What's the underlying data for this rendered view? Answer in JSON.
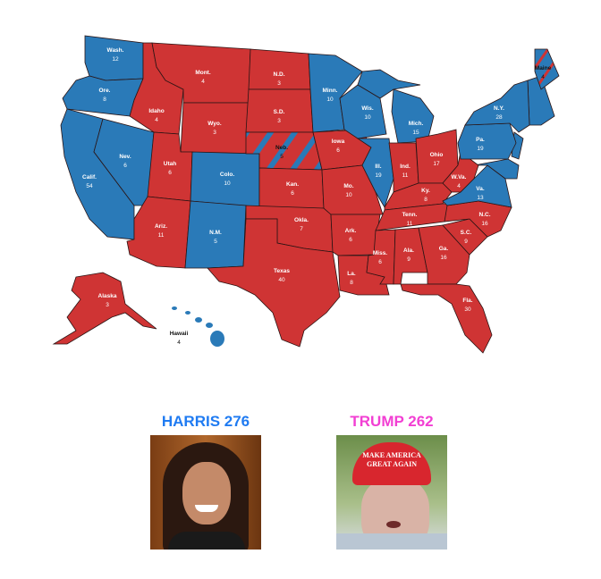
{
  "colors": {
    "harris": "#2a7ab8",
    "trump": "#cf3434",
    "harris_heading": "#1f7bf2",
    "trump_heading": "#f23fd3",
    "border": "#2a1414"
  },
  "map": {
    "states": [
      {
        "name": "Wash.",
        "votes": "12",
        "winner": "harris"
      },
      {
        "name": "Ore.",
        "votes": "8",
        "winner": "harris"
      },
      {
        "name": "Calif.",
        "votes": "54",
        "winner": "harris"
      },
      {
        "name": "Nev.",
        "votes": "6",
        "winner": "harris"
      },
      {
        "name": "Idaho",
        "votes": "4",
        "winner": "trump"
      },
      {
        "name": "Mont.",
        "votes": "4",
        "winner": "trump"
      },
      {
        "name": "Wyo.",
        "votes": "3",
        "winner": "trump"
      },
      {
        "name": "Utah",
        "votes": "6",
        "winner": "trump"
      },
      {
        "name": "Colo.",
        "votes": "10",
        "winner": "harris"
      },
      {
        "name": "Ariz.",
        "votes": "11",
        "winner": "trump"
      },
      {
        "name": "N.M.",
        "votes": "5",
        "winner": "harris"
      },
      {
        "name": "N.D.",
        "votes": "3",
        "winner": "trump"
      },
      {
        "name": "S.D.",
        "votes": "3",
        "winner": "trump"
      },
      {
        "name": "Neb.",
        "votes": "5",
        "winner": "split-trump"
      },
      {
        "name": "Kan.",
        "votes": "6",
        "winner": "trump"
      },
      {
        "name": "Okla.",
        "votes": "7",
        "winner": "trump"
      },
      {
        "name": "Texas",
        "votes": "40",
        "winner": "trump"
      },
      {
        "name": "Minn.",
        "votes": "10",
        "winner": "harris"
      },
      {
        "name": "Iowa",
        "votes": "6",
        "winner": "trump"
      },
      {
        "name": "Mo.",
        "votes": "10",
        "winner": "trump"
      },
      {
        "name": "Ark.",
        "votes": "6",
        "winner": "trump"
      },
      {
        "name": "La.",
        "votes": "8",
        "winner": "trump"
      },
      {
        "name": "Wis.",
        "votes": "10",
        "winner": "harris"
      },
      {
        "name": "Ill.",
        "votes": "19",
        "winner": "harris"
      },
      {
        "name": "Mich.",
        "votes": "15",
        "winner": "harris"
      },
      {
        "name": "Ind.",
        "votes": "11",
        "winner": "trump"
      },
      {
        "name": "Ohio",
        "votes": "17",
        "winner": "trump"
      },
      {
        "name": "Ky.",
        "votes": "8",
        "winner": "trump"
      },
      {
        "name": "Tenn.",
        "votes": "11",
        "winner": "trump"
      },
      {
        "name": "Miss.",
        "votes": "6",
        "winner": "trump"
      },
      {
        "name": "Ala.",
        "votes": "9",
        "winner": "trump"
      },
      {
        "name": "Ga.",
        "votes": "16",
        "winner": "trump"
      },
      {
        "name": "Fla.",
        "votes": "30",
        "winner": "trump"
      },
      {
        "name": "S.C.",
        "votes": "9",
        "winner": "trump"
      },
      {
        "name": "N.C.",
        "votes": "16",
        "winner": "trump"
      },
      {
        "name": "W.Va.",
        "votes": "4",
        "winner": "trump"
      },
      {
        "name": "Va.",
        "votes": "13",
        "winner": "harris"
      },
      {
        "name": "Pa.",
        "votes": "19",
        "winner": "harris"
      },
      {
        "name": "N.Y.",
        "votes": "28",
        "winner": "harris"
      },
      {
        "name": "Maine",
        "votes": "4",
        "winner": "split-harris"
      },
      {
        "name": "Alaska",
        "votes": "3",
        "winner": "trump"
      },
      {
        "name": "Hawaii",
        "votes": "4",
        "winner": "harris"
      }
    ]
  },
  "candidates": {
    "harris": {
      "heading": "HARRIS 276",
      "photo": "harris-portrait"
    },
    "trump": {
      "heading": "TRUMP 262",
      "photo": "trump-portrait",
      "cap_text": "MAKE AMERICA GREAT AGAIN"
    }
  }
}
